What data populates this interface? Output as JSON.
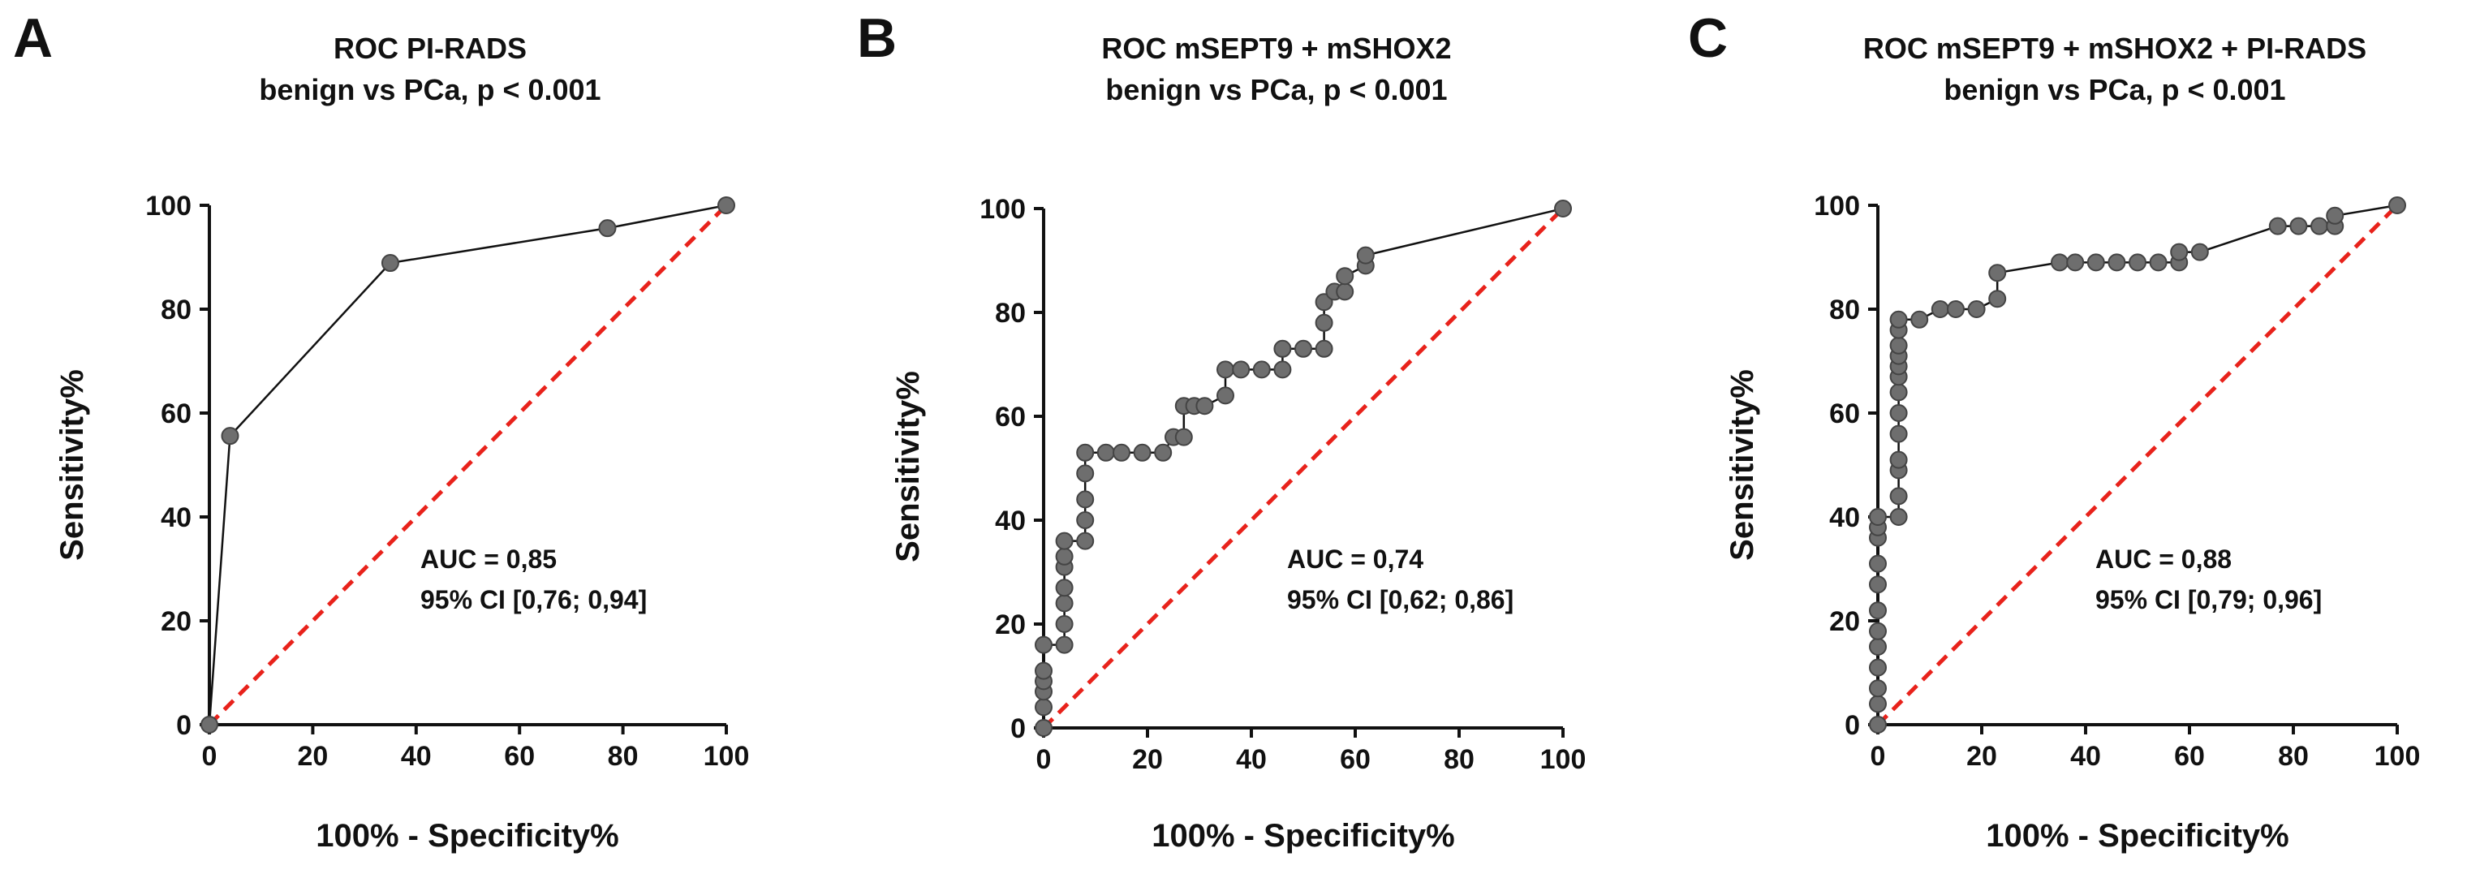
{
  "figure": {
    "panels": [
      "A",
      "B",
      "C"
    ]
  },
  "chart_data": [
    {
      "type": "line",
      "panel": "A",
      "title": "ROC PI-RADS",
      "subtitle": "benign vs PCa, p < 0.001",
      "xlabel": "100% - Specificity%",
      "ylabel": "Sensitivity%",
      "xlim": [
        0,
        100
      ],
      "ylim": [
        0,
        100
      ],
      "xticks": [
        "0",
        "20",
        "40",
        "60",
        "80",
        "100"
      ],
      "yticks": [
        "0",
        "20",
        "40",
        "60",
        "80",
        "100"
      ],
      "annotation": [
        "AUC = 0,85",
        "95% CI [0,76; 0,94]"
      ],
      "reference_line": {
        "style": "red dashed",
        "x": [
          0,
          100
        ],
        "y": [
          0,
          100
        ]
      },
      "series": [
        {
          "name": "ROC",
          "x": [
            0,
            4,
            35,
            77,
            100
          ],
          "y": [
            0,
            55.6,
            88.9,
            95.6,
            100
          ]
        }
      ]
    },
    {
      "type": "line",
      "panel": "B",
      "title": "ROC mSEPT9 + mSHOX2",
      "subtitle": "benign vs PCa, p < 0.001",
      "xlabel": "100% - Specificity%",
      "ylabel": "Sensitivity%",
      "xlim": [
        0,
        100
      ],
      "ylim": [
        0,
        100
      ],
      "xticks": [
        "0",
        "20",
        "40",
        "60",
        "80",
        "100"
      ],
      "yticks": [
        "0",
        "20",
        "40",
        "60",
        "80",
        "100"
      ],
      "annotation": [
        "AUC = 0,74",
        "95% CI [0,62; 0,86]"
      ],
      "reference_line": {
        "style": "red dashed",
        "x": [
          0,
          100
        ],
        "y": [
          0,
          100
        ]
      },
      "series": [
        {
          "name": "ROC",
          "x": [
            0,
            0,
            0,
            0,
            0,
            0,
            4,
            4,
            4,
            4,
            4,
            4,
            4,
            8,
            8,
            8,
            8,
            8,
            12,
            15,
            19,
            23,
            25,
            27,
            27,
            29,
            31,
            35,
            35,
            38,
            42,
            46,
            46,
            50,
            54,
            54,
            54,
            56,
            58,
            58,
            62,
            62,
            100
          ],
          "y": [
            0,
            4,
            7,
            9,
            11,
            16,
            16,
            20,
            24,
            27,
            31,
            33,
            36,
            36,
            40,
            44,
            49,
            53,
            53,
            53,
            53,
            53,
            56,
            56,
            62,
            62,
            62,
            64,
            69,
            69,
            69,
            69,
            73,
            73,
            73,
            78,
            82,
            84,
            84,
            87,
            89,
            91,
            100
          ]
        }
      ]
    },
    {
      "type": "line",
      "panel": "C",
      "title": "ROC mSEPT9 + mSHOX2 + PI-RADS",
      "subtitle": "benign vs PCa, p < 0.001",
      "xlabel": "100% - Specificity%",
      "ylabel": "Sensitivity%",
      "xlim": [
        0,
        100
      ],
      "ylim": [
        0,
        100
      ],
      "xticks": [
        "0",
        "20",
        "40",
        "60",
        "80",
        "100"
      ],
      "yticks": [
        "0",
        "20",
        "40",
        "60",
        "80",
        "100"
      ],
      "annotation": [
        "AUC = 0,88",
        "95% CI [0,79; 0,96]"
      ],
      "reference_line": {
        "style": "red dashed",
        "x": [
          0,
          100
        ],
        "y": [
          0,
          100
        ]
      },
      "series": [
        {
          "name": "ROC",
          "x": [
            0,
            0,
            0,
            0,
            0,
            0,
            0,
            0,
            0,
            0,
            0,
            0,
            4,
            4,
            4,
            4,
            4,
            4,
            4,
            4,
            4,
            4,
            4,
            4,
            4,
            8,
            12,
            15,
            19,
            23,
            23,
            35,
            38,
            42,
            46,
            50,
            54,
            58,
            58,
            62,
            77,
            81,
            85,
            88,
            88,
            100
          ],
          "y": [
            0,
            4,
            7,
            11,
            15,
            18,
            22,
            27,
            31,
            36,
            38,
            40,
            40,
            44,
            49,
            51,
            56,
            60,
            64,
            67,
            69,
            71,
            73,
            76,
            78,
            78,
            80,
            80,
            80,
            82,
            87,
            89,
            89,
            89,
            89,
            89,
            89,
            89,
            91,
            91,
            96,
            96,
            96,
            96,
            98,
            100
          ]
        }
      ]
    }
  ]
}
